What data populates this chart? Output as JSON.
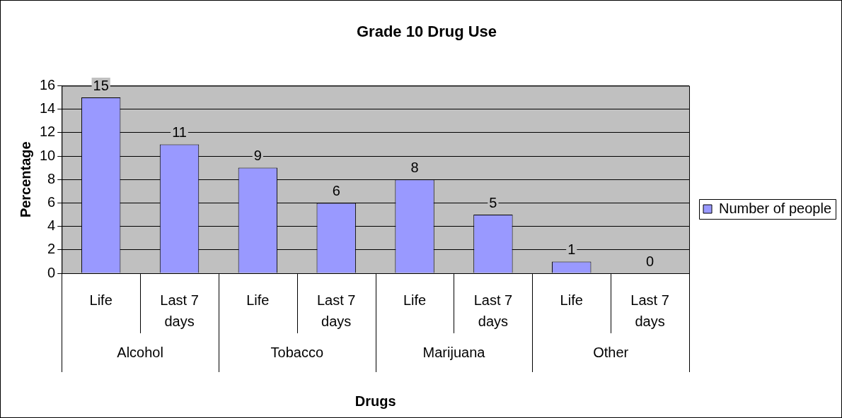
{
  "chart_data": {
    "type": "bar",
    "title": "Grade 10 Drug Use",
    "xlabel": "Drugs",
    "ylabel": "Percentage",
    "categories": [
      "Life",
      "Last 7 days",
      "Life",
      "Last 7 days",
      "Life",
      "Last 7 days",
      "Life",
      "Last 7 days"
    ],
    "series": [
      {
        "name": "Number of people",
        "color": "#9999ff",
        "values": [
          15,
          11,
          9,
          6,
          8,
          5,
          1,
          0
        ]
      }
    ],
    "ylim": [
      0,
      16
    ],
    "yticks": [
      0,
      2,
      4,
      6,
      8,
      10,
      12,
      14,
      16
    ],
    "grid": "y",
    "legend": "right",
    "data_labels": true,
    "annotations": [
      "Alcohol",
      "Tobacco",
      "Marijuana",
      "Other"
    ]
  }
}
